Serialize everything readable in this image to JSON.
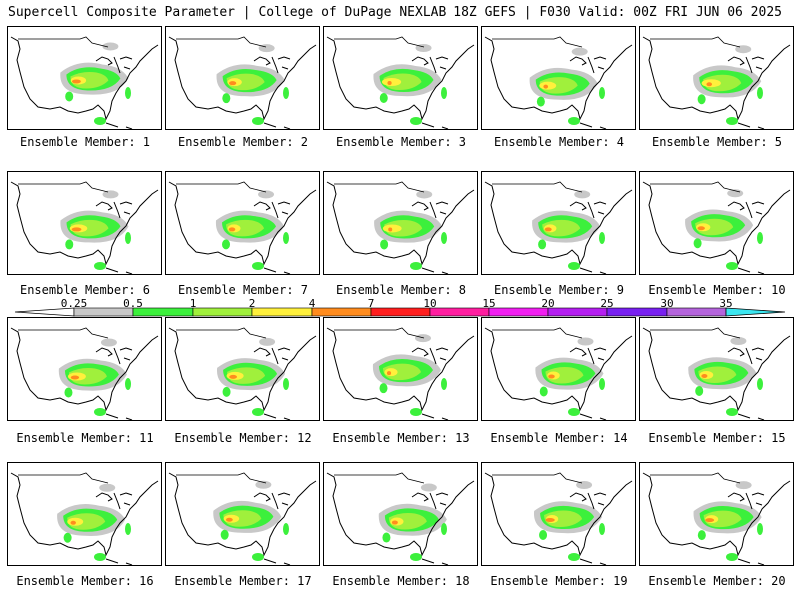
{
  "header": {
    "left_title": "Supercell Composite Parameter | College of DuPage NEXLAB",
    "right_title": "18Z GEFS | F030 Valid: 00Z FRI JUN 06 2025"
  },
  "panel_label_prefix": "Ensemble Member:",
  "members": [
    1,
    2,
    3,
    4,
    5,
    6,
    7,
    8,
    9,
    10,
    11,
    12,
    13,
    14,
    15,
    16,
    17,
    18,
    19,
    20
  ],
  "colorbar": {
    "ticks": [
      "0.25",
      "0.5",
      "1",
      "2",
      "4",
      "7",
      "10",
      "15",
      "20",
      "25",
      "30",
      "35"
    ],
    "colors": [
      "#c8c8c8",
      "#3cf03c",
      "#a0f03c",
      "#fff03c",
      "#ff8c1e",
      "#ff1e1e",
      "#ff1ea0",
      "#f01ef0",
      "#b41ef0",
      "#7820f0",
      "#b464dc",
      "#3ce6f0"
    ]
  },
  "colors": {
    "map_outline": "#000000",
    "border_line": "#000000"
  }
}
